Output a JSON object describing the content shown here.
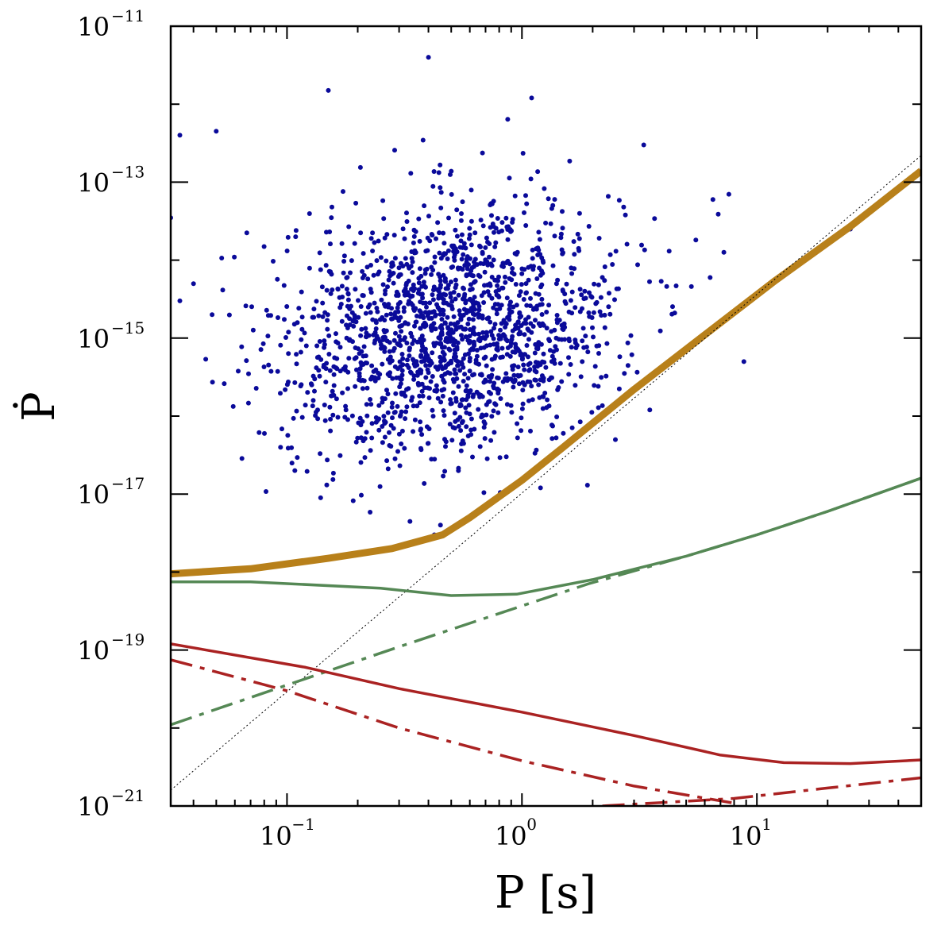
{
  "chart_data": {
    "type": "scatter",
    "x_scale": "log",
    "y_scale": "log",
    "xlim": [
      0.032,
      50
    ],
    "ylim": [
      1e-21,
      1e-11
    ],
    "xlabel": "P [s]",
    "ylabel": "Ṗ",
    "x_ticks": [
      {
        "base": "10",
        "exp": "−1",
        "value": 0.1
      },
      {
        "base": "10",
        "exp": "0",
        "value": 1
      },
      {
        "base": "10",
        "exp": "1",
        "value": 10
      }
    ],
    "y_ticks": [
      {
        "base": "10",
        "exp": "−11",
        "value": 1e-11
      },
      {
        "base": "10",
        "exp": "−13",
        "value": 1e-13
      },
      {
        "base": "10",
        "exp": "−15",
        "value": 1e-15
      },
      {
        "base": "10",
        "exp": "−17",
        "value": 1e-17
      },
      {
        "base": "10",
        "exp": "−19",
        "value": 1e-19
      },
      {
        "base": "10",
        "exp": "−21",
        "value": 1e-21
      }
    ],
    "scatter": {
      "color": "#0a0a9a",
      "count": 1700,
      "center": {
        "log10_P": -0.3,
        "log10_Pdot": -14.9
      },
      "spread": {
        "log10_P": 0.36,
        "log10_Pdot": 0.8
      },
      "correlation": 0.15,
      "points": [
        {
          "P": 0.4,
          "Pdot": 4e-12
        },
        {
          "P": 0.15,
          "Pdot": 1.5e-12
        },
        {
          "P": 1.1,
          "Pdot": 1.2e-12
        },
        {
          "P": 0.035,
          "Pdot": 4e-13
        },
        {
          "P": 0.05,
          "Pdot": 4.5e-13
        },
        {
          "P": 0.035,
          "Pdot": 3e-15
        },
        {
          "P": 0.048,
          "Pdot": 2e-15
        },
        {
          "P": 0.04,
          "Pdot": 5e-15
        },
        {
          "P": 0.032,
          "Pdot": 3.5e-14
        },
        {
          "P": 0.105,
          "Pdot": 2.5e-17
        },
        {
          "P": 0.108,
          "Pdot": 2e-17
        },
        {
          "P": 0.135,
          "Pdot": 1.2e-16
        },
        {
          "P": 8.8,
          "Pdot": 5e-16
        },
        {
          "P": 1.9,
          "Pdot": 1.3e-17
        },
        {
          "P": 6.5,
          "Pdot": 6e-14
        },
        {
          "P": 7.6,
          "Pdot": 7e-14
        },
        {
          "P": 3.3,
          "Pdot": 3e-13
        },
        {
          "P": 1.5,
          "Pdot": 6e-17
        },
        {
          "P": 1.2,
          "Pdot": 1.2e-17
        },
        {
          "P": 3.5,
          "Pdot": 1.2e-16
        },
        {
          "P": 2.5,
          "Pdot": 5e-17
        },
        {
          "P": 0.45,
          "Pdot": 4e-18
        },
        {
          "P": 25.0,
          "Pdot": 2.5e-14
        }
      ]
    },
    "series": [
      {
        "color": "#b8801a",
        "width": 9,
        "style": "solid",
        "points": [
          [
            0.032,
            9.5e-19
          ],
          [
            0.07,
            1.1e-18
          ],
          [
            0.15,
            1.5e-18
          ],
          [
            0.28,
            2e-18
          ],
          [
            0.46,
            3e-18
          ],
          [
            0.6,
            5e-18
          ],
          [
            1.0,
            1.5e-17
          ],
          [
            1.5,
            4e-17
          ],
          [
            3.0,
            2.2e-16
          ],
          [
            6.0,
            1.1e-15
          ],
          [
            12.0,
            5.5e-15
          ],
          [
            25.0,
            2.7e-14
          ],
          [
            50.0,
            1.4e-13
          ]
        ]
      },
      {
        "color": "#000000",
        "width": 1,
        "style": "dotted",
        "points": [
          [
            0.032,
            1.6e-21
          ],
          [
            50.0,
            2.2e-13
          ]
        ]
      },
      {
        "color": "#558855",
        "width": 3.5,
        "style": "solid",
        "points": [
          [
            0.032,
            7.5e-19
          ],
          [
            0.07,
            7.5e-19
          ],
          [
            0.25,
            6.2e-19
          ],
          [
            0.5,
            5e-19
          ],
          [
            0.95,
            5.2e-19
          ],
          [
            2.0,
            8e-19
          ],
          [
            5.0,
            1.6e-18
          ],
          [
            10.0,
            3e-18
          ],
          [
            20.0,
            6e-18
          ],
          [
            50.0,
            1.6e-17
          ]
        ]
      },
      {
        "color": "#558855",
        "width": 3.5,
        "style": "dashdot",
        "points": [
          [
            0.032,
            1.1e-20
          ],
          [
            0.3,
            1.1e-19
          ],
          [
            1.9,
            7e-19
          ],
          [
            5.0,
            1.6e-18
          ],
          [
            10.0,
            3e-18
          ],
          [
            20.0,
            6e-18
          ],
          [
            50.0,
            1.6e-17
          ]
        ]
      },
      {
        "color": "#aa2222",
        "width": 3.5,
        "style": "solid",
        "points": [
          [
            0.032,
            1.2e-19
          ],
          [
            0.12,
            6e-20
          ],
          [
            0.3,
            3.2e-20
          ],
          [
            1.0,
            1.6e-20
          ],
          [
            3.0,
            8e-21
          ],
          [
            7.0,
            4.5e-21
          ],
          [
            13.0,
            3.6e-21
          ],
          [
            25.0,
            3.5e-21
          ],
          [
            50.0,
            3.9e-21
          ]
        ]
      },
      {
        "color": "#aa2222",
        "width": 3.5,
        "style": "dashdot",
        "points": [
          [
            0.032,
            7.5e-20
          ],
          [
            0.1,
            3e-20
          ],
          [
            0.3,
            1e-20
          ],
          [
            1.0,
            3.8e-21
          ],
          [
            3.0,
            1.8e-21
          ],
          [
            7.8,
            1.1e-21
          ]
        ]
      },
      {
        "color": "#aa2222",
        "width": 3.5,
        "style": "dashdot",
        "points": [
          [
            2.2,
            1e-21
          ],
          [
            8.0,
            1.25e-21
          ],
          [
            20.0,
            1.7e-21
          ],
          [
            50.0,
            2.3e-21
          ]
        ]
      }
    ]
  }
}
